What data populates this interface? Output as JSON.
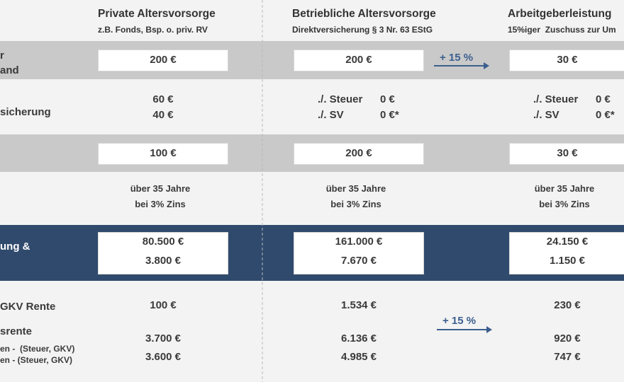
{
  "columns": [
    {
      "title": "Private Altersvorsorge",
      "subtitle": "z.B. Fonds, Bsp. o. priv. RV"
    },
    {
      "title": "Betriebliche Altersvorsorge",
      "subtitle": "Direktversicherung § 3 Nr. 63 EStG"
    },
    {
      "title": "Arbeitgeberleistung",
      "subtitle": "15%iger  Zuschuss zur Um"
    }
  ],
  "row_labels": [
    "r",
    "and",
    "sicherung",
    "ung &",
    "GKV Rente",
    "srente",
    "en -  (Steuer, GKV)",
    "en - (Steuer, GKV)"
  ],
  "arrows": [
    "+ 15 %",
    "+ 15 %"
  ],
  "effort": [
    "200 €",
    "200 €",
    "30 €"
  ],
  "deductions": [
    [
      {
        "label": "60 €"
      },
      {
        "label": "40 €"
      }
    ],
    [
      {
        "label": "./. Steuer",
        "value": "0 €"
      },
      {
        "label": "./. SV",
        "value": "0 €*"
      }
    ],
    [
      {
        "label": "./. Steuer",
        "value": "0 €"
      },
      {
        "label": "./. SV",
        "value": "0 €*"
      }
    ]
  ],
  "net": [
    "100 €",
    "200 €",
    "30 €"
  ],
  "period": [
    [
      "über 35 Jahre",
      "bei 3% Zins"
    ],
    [
      "über 35 Jahre",
      "bei 3% Zins"
    ],
    [
      "über 35 Jahre",
      "bei 3% Zins"
    ]
  ],
  "result": [
    [
      "80.500 €",
      "3.800 €"
    ],
    [
      "161.000 €",
      "7.670 €"
    ],
    [
      "24.150 €",
      "1.150 €"
    ]
  ],
  "gkv": [
    "100 €",
    "1.534 €",
    "230 €"
  ],
  "pension_gross": [
    "3.700 €",
    "6.136 €",
    "920 €"
  ],
  "pension_net": [
    "3.600 €",
    "4.985 €",
    "747 €"
  ]
}
